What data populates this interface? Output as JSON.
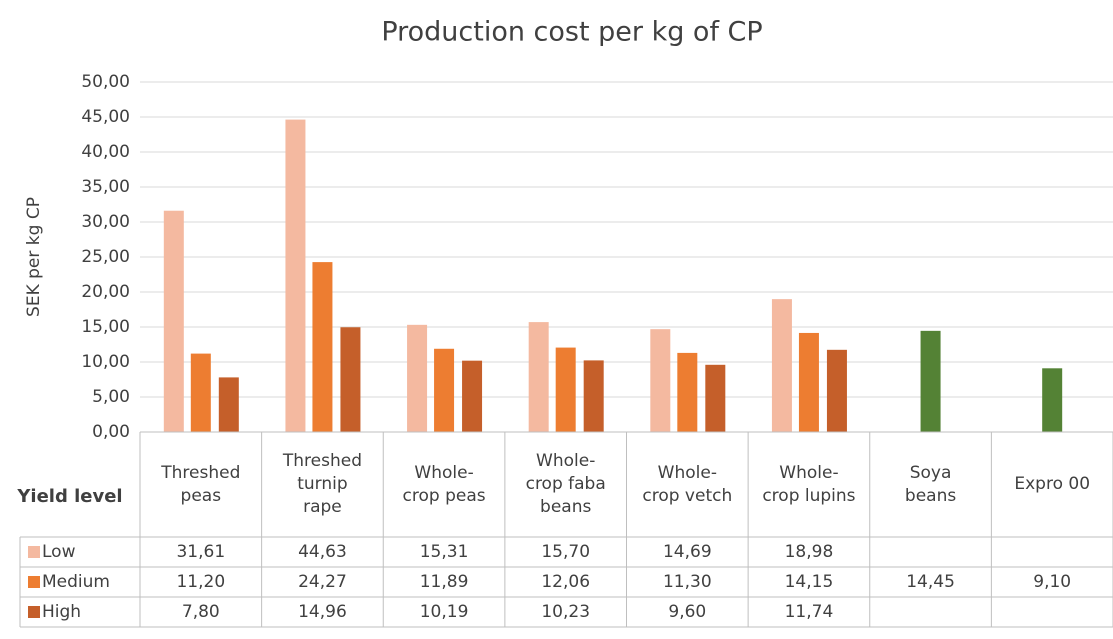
{
  "chart_data": {
    "type": "bar",
    "title": "Production cost per kg of CP",
    "y_label": "SEK per kg CP",
    "table_header": "Yield level",
    "categories": [
      "Threshed peas",
      "Threshed turnip rape",
      "Whole-crop peas",
      "Whole-crop faba beans",
      "Whole-crop vetch",
      "Whole-crop lupins",
      "Soya beans",
      "Expro 00"
    ],
    "series": [
      {
        "name": "Low",
        "color": "#f4b9a0",
        "values": [
          31.61,
          44.63,
          15.31,
          15.7,
          14.69,
          18.98,
          null,
          null
        ],
        "value_labels": [
          "31,61",
          "44,63",
          "15,31",
          "15,70",
          "14,69",
          "18,98",
          null,
          null
        ]
      },
      {
        "name": "Medium",
        "color": "#ed7d31",
        "colors": [
          "#ed7d31",
          "#ed7d31",
          "#ed7d31",
          "#ed7d31",
          "#ed7d31",
          "#ed7d31",
          "#548235",
          "#548235"
        ],
        "values": [
          11.2,
          24.27,
          11.89,
          12.06,
          11.3,
          14.15,
          14.45,
          9.1
        ],
        "value_labels": [
          "11,20",
          "24,27",
          "11,89",
          "12,06",
          "11,30",
          "14,15",
          "14,45",
          "9,10"
        ]
      },
      {
        "name": "High",
        "color": "#c55f2a",
        "values": [
          7.8,
          14.96,
          10.19,
          10.23,
          9.6,
          11.74,
          null,
          null
        ],
        "value_labels": [
          "7,80",
          "14,96",
          "10,19",
          "10,23",
          "9,60",
          "11,74",
          null,
          null
        ]
      }
    ],
    "ylim": [
      0,
      50
    ],
    "yticks": [
      {
        "value": 0,
        "label": "0,00"
      },
      {
        "value": 5,
        "label": "5,00"
      },
      {
        "value": 10,
        "label": "10,00"
      },
      {
        "value": 15,
        "label": "15,00"
      },
      {
        "value": 20,
        "label": "20,00"
      },
      {
        "value": 25,
        "label": "25,00"
      },
      {
        "value": 30,
        "label": "30,00"
      },
      {
        "value": 35,
        "label": "35,00"
      },
      {
        "value": 40,
        "label": "40,00"
      },
      {
        "value": 45,
        "label": "45,00"
      },
      {
        "value": 50,
        "label": "50,00"
      }
    ],
    "grid": true
  }
}
